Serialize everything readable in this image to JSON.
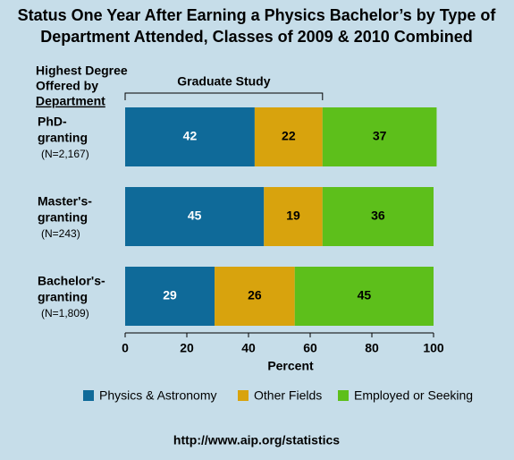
{
  "chart_data": {
    "type": "stacked-bar-horizontal",
    "title": [
      "Status One Year After Earning a Physics Bachelor’s by Type of",
      "Department Attended, Classes of 2009 & 2010 Combined"
    ],
    "category_axis_title": [
      "Highest Degree",
      "Offered by",
      "Department"
    ],
    "categories": [
      [
        "PhD-",
        "granting"
      ],
      [
        "Master's-",
        "granting"
      ],
      [
        "Bachelor's-",
        "granting"
      ]
    ],
    "category_notes": [
      "(N=2,167)",
      "(N=243)",
      "(N=1,809)"
    ],
    "annotation": "Graduate Study",
    "series": [
      {
        "name": "Physics & Astronomy",
        "color": "#0f6a99",
        "label_color": "#ffffff",
        "values": [
          42,
          45,
          29
        ]
      },
      {
        "name": "Other Fields",
        "color": "#d8a30d",
        "label_color": "#000000",
        "values": [
          22,
          19,
          26
        ]
      },
      {
        "name": "Employed or Seeking",
        "color": "#5dbf1b",
        "label_color": "#000000",
        "values": [
          37,
          36,
          45
        ]
      }
    ],
    "xlim": [
      0,
      100
    ],
    "xticks": [
      0,
      20,
      40,
      60,
      80,
      100
    ],
    "xlabel": "Percent",
    "source": "http://www.aip.org/statistics"
  }
}
